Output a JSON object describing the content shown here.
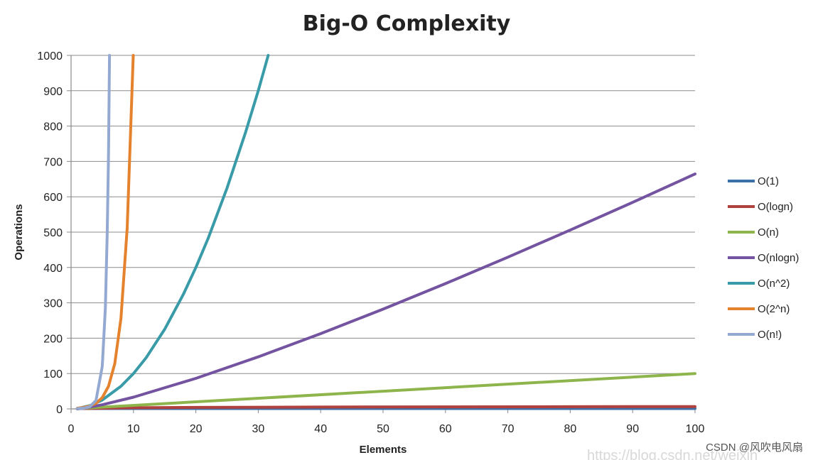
{
  "chart_data": {
    "type": "line",
    "title": "Big-O Complexity",
    "xlabel": "Elements",
    "ylabel": "Operations",
    "xlim": [
      0,
      100
    ],
    "ylim": [
      0,
      1000
    ],
    "x_ticks": [
      0,
      10,
      20,
      30,
      40,
      50,
      60,
      70,
      80,
      90,
      100
    ],
    "y_ticks": [
      0,
      100,
      200,
      300,
      400,
      500,
      600,
      700,
      800,
      900,
      1000
    ],
    "grid": "horizontal",
    "legend_position": "right",
    "series": [
      {
        "name": "O(1)",
        "color": "#3d6fa8",
        "points": [
          [
            1,
            1
          ],
          [
            100,
            1
          ]
        ]
      },
      {
        "name": "O(logn)",
        "color": "#b0413e",
        "points": [
          [
            2,
            1
          ],
          [
            10,
            3.3
          ],
          [
            20,
            4.3
          ],
          [
            40,
            5.3
          ],
          [
            60,
            5.9
          ],
          [
            80,
            6.3
          ],
          [
            100,
            6.6
          ]
        ]
      },
      {
        "name": "O(n)",
        "color": "#8eb44c",
        "points": [
          [
            1,
            1
          ],
          [
            100,
            100
          ]
        ]
      },
      {
        "name": "O(nlogn)",
        "color": "#7453a0",
        "points": [
          [
            1,
            0
          ],
          [
            2,
            2
          ],
          [
            5,
            11.6
          ],
          [
            10,
            33.2
          ],
          [
            20,
            86.4
          ],
          [
            30,
            147.2
          ],
          [
            40,
            212.9
          ],
          [
            50,
            282.2
          ],
          [
            60,
            354.4
          ],
          [
            70,
            429.1
          ],
          [
            80,
            505.8
          ],
          [
            90,
            584.2
          ],
          [
            100,
            664.4
          ]
        ]
      },
      {
        "name": "O(n^2)",
        "color": "#3a9ba8",
        "points": [
          [
            1,
            1
          ],
          [
            3,
            9
          ],
          [
            5,
            25
          ],
          [
            8,
            64
          ],
          [
            10,
            100
          ],
          [
            12,
            144
          ],
          [
            15,
            225
          ],
          [
            18,
            324
          ],
          [
            20,
            400
          ],
          [
            22,
            484
          ],
          [
            25,
            625
          ],
          [
            28,
            784
          ],
          [
            30,
            900
          ],
          [
            31.6,
            1000
          ]
        ]
      },
      {
        "name": "O(2^n)",
        "color": "#e5822e",
        "points": [
          [
            1,
            2
          ],
          [
            2,
            4
          ],
          [
            3,
            8
          ],
          [
            4,
            16
          ],
          [
            5,
            32
          ],
          [
            6,
            64
          ],
          [
            7,
            128
          ],
          [
            8,
            256
          ],
          [
            9,
            512
          ],
          [
            9.97,
            1000
          ]
        ]
      },
      {
        "name": "O(n!)",
        "color": "#93a9d1",
        "points": [
          [
            1,
            1
          ],
          [
            2,
            2
          ],
          [
            3,
            6
          ],
          [
            4,
            24
          ],
          [
            5,
            120
          ],
          [
            5.5,
            287
          ],
          [
            5.8,
            500
          ],
          [
            6,
            720
          ],
          [
            6.16,
            1000
          ]
        ]
      }
    ]
  },
  "watermark": {
    "text": "CSDN @风吹电风扇",
    "ghost_url": "https://blog.csdn.net/weixin"
  }
}
